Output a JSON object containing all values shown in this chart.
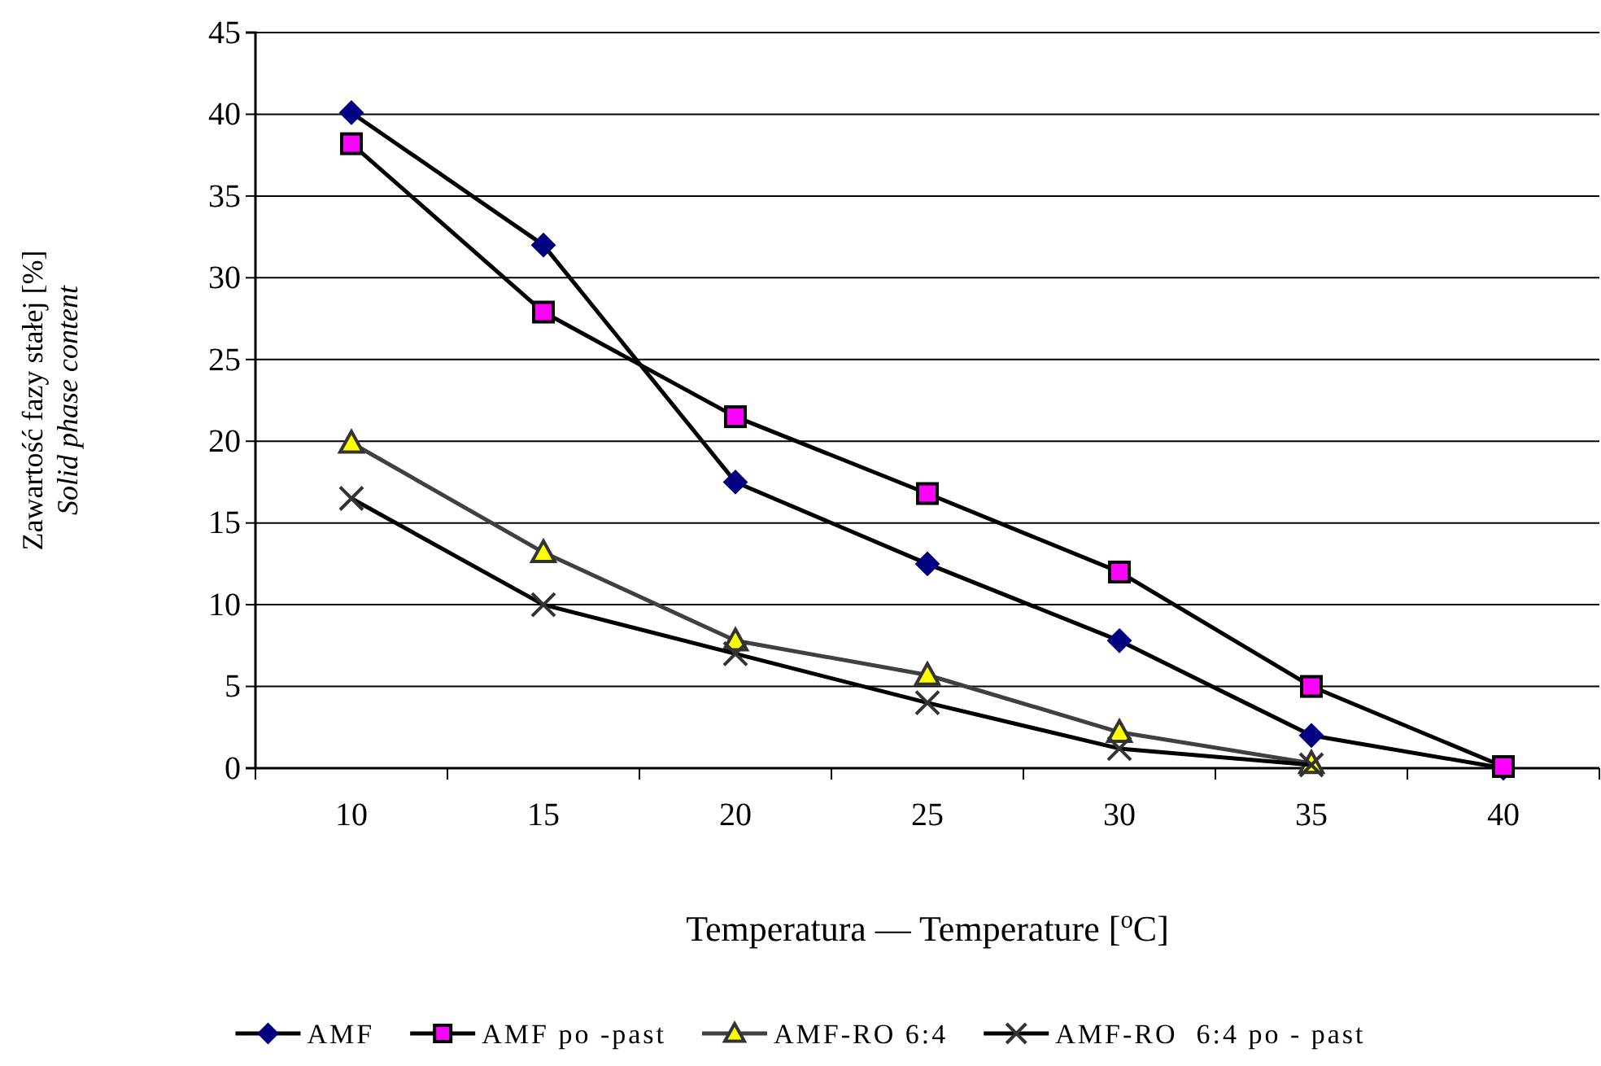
{
  "chart_data": {
    "type": "line",
    "xlabel": "Temperatura — Temperature [$^{o}$C]",
    "ylabel": "Zawartość fazy stałej [%]\nSolid phase content",
    "categories": [
      "10",
      "15",
      "20",
      "25",
      "30",
      "35",
      "40"
    ],
    "ylim": [
      0,
      45
    ],
    "yticks": [
      0,
      5,
      10,
      15,
      20,
      25,
      30,
      35,
      40,
      45
    ],
    "grid": "y",
    "legend": "bottom",
    "series": [
      {
        "name": "AMF",
        "color": "#000080",
        "marker": "diamond",
        "values": [
          40.1,
          32,
          17.5,
          12.5,
          7.8,
          2,
          0
        ]
      },
      {
        "name": "AMF po -past",
        "color": "#ff00ff",
        "marker": "square",
        "values": [
          38.2,
          27.9,
          21.5,
          16.8,
          12,
          5,
          0.1
        ]
      },
      {
        "name": "AMF-RO 6:4",
        "color": "#ffff00",
        "marker": "triangle",
        "values": [
          19.9,
          13.2,
          7.8,
          5.7,
          2.2,
          0.3,
          null
        ]
      },
      {
        "name": "AMF-RO  6:4 po - past",
        "color": "#333333",
        "marker": "cross",
        "values": [
          16.5,
          10,
          7,
          4,
          1.2,
          0.2,
          null
        ]
      }
    ]
  }
}
